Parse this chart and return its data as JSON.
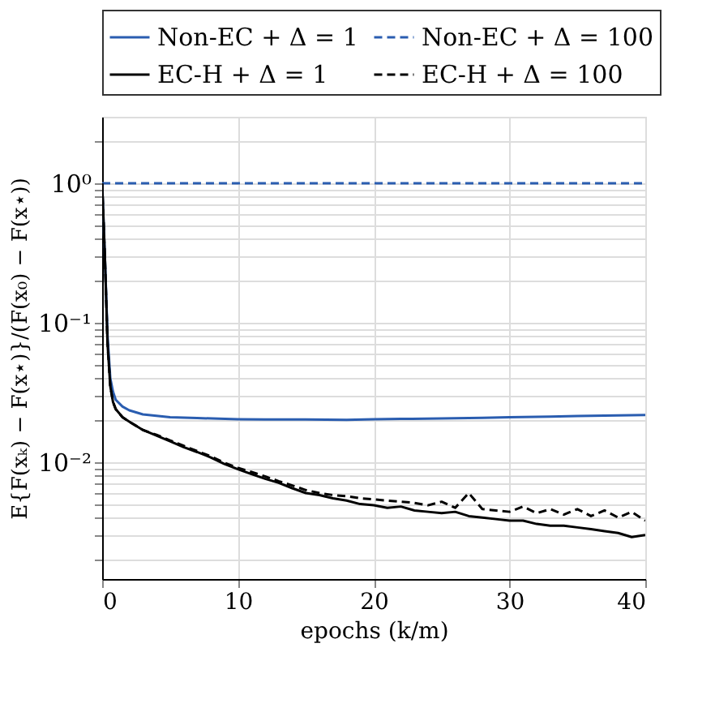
{
  "chart_data": {
    "type": "line",
    "xlabel": "epochs (k/m)",
    "ylabel": "E{F(xₖ) − F(x⋆)}/(F(x₀) − F(x⋆))",
    "log": "y",
    "grid": true,
    "legend": "top",
    "xlim": [
      0,
      40
    ],
    "xticks": [
      0,
      10,
      20,
      30,
      40
    ],
    "ylim": [
      0.00145,
      3
    ],
    "yticks": [
      {
        "value": 0.002,
        "label": null
      },
      {
        "value": 0.003,
        "label": null
      },
      {
        "value": 0.004,
        "label": null
      },
      {
        "value": 0.005,
        "label": null
      },
      {
        "value": 0.006,
        "label": null
      },
      {
        "value": 0.007,
        "label": null
      },
      {
        "value": 0.008,
        "label": null
      },
      {
        "value": 0.009,
        "label": null
      },
      {
        "value": 0.01,
        "label": "10⁻²"
      },
      {
        "value": 0.02,
        "label": null
      },
      {
        "value": 0.03,
        "label": null
      },
      {
        "value": 0.04,
        "label": null
      },
      {
        "value": 0.05,
        "label": null
      },
      {
        "value": 0.06,
        "label": null
      },
      {
        "value": 0.07,
        "label": null
      },
      {
        "value": 0.08,
        "label": null
      },
      {
        "value": 0.09,
        "label": null
      },
      {
        "value": 0.1,
        "label": "10⁻¹"
      },
      {
        "value": 0.2,
        "label": null
      },
      {
        "value": 0.3,
        "label": null
      },
      {
        "value": 0.4,
        "label": null
      },
      {
        "value": 0.5,
        "label": null
      },
      {
        "value": 0.6,
        "label": null
      },
      {
        "value": 0.7,
        "label": null
      },
      {
        "value": 0.8,
        "label": null
      },
      {
        "value": 0.9,
        "label": null
      },
      {
        "value": 1,
        "label": "10⁰"
      },
      {
        "value": 2,
        "label": null
      }
    ],
    "series": [
      {
        "name": "Non-EC + Δ = 1",
        "color": "#2a5db0",
        "line_style": "solid",
        "x": [
          0,
          0.2,
          0.4,
          0.6,
          0.8,
          1,
          1.5,
          2,
          3,
          4,
          5,
          7,
          10,
          12,
          15,
          18,
          20,
          22,
          25,
          28,
          30,
          33,
          35,
          38,
          40
        ],
        "values": [
          1,
          0.3,
          0.08,
          0.04,
          0.032,
          0.028,
          0.025,
          0.0235,
          0.022,
          0.0215,
          0.021,
          0.0207,
          0.0203,
          0.0202,
          0.0202,
          0.0201,
          0.0203,
          0.0204,
          0.0206,
          0.0208,
          0.021,
          0.0212,
          0.0214,
          0.0216,
          0.0218
        ]
      },
      {
        "name": "Non-EC + Δ = 100",
        "color": "#2a5db0",
        "line_style": "dashed",
        "x": [
          0,
          40
        ],
        "values": [
          1,
          1
        ]
      },
      {
        "name": "EC-H + Δ = 1",
        "color": "#000000",
        "line_style": "solid",
        "x": [
          0,
          0.2,
          0.4,
          0.6,
          0.8,
          1,
          1.5,
          2,
          3,
          4,
          5,
          6,
          7,
          8,
          9,
          10,
          11,
          12,
          13,
          14,
          15,
          16,
          17,
          18,
          19,
          20,
          21,
          22,
          23,
          24,
          25,
          26,
          27,
          28,
          29,
          30,
          31,
          32,
          33,
          34,
          35,
          36,
          37,
          38,
          39,
          40
        ],
        "values": [
          1,
          0.3,
          0.07,
          0.035,
          0.027,
          0.024,
          0.021,
          0.0195,
          0.017,
          0.0155,
          0.0141,
          0.0128,
          0.0118,
          0.0108,
          0.0097,
          0.0089,
          0.0082,
          0.0076,
          0.0071,
          0.0065,
          0.006,
          0.0058,
          0.0055,
          0.0053,
          0.005,
          0.0049,
          0.0047,
          0.0048,
          0.0045,
          0.0044,
          0.0043,
          0.0044,
          0.0041,
          0.004,
          0.0039,
          0.0038,
          0.0038,
          0.0036,
          0.0035,
          0.0035,
          0.0034,
          0.0033,
          0.0032,
          0.0031,
          0.0029,
          0.003
        ]
      },
      {
        "name": "EC-H + Δ = 100",
        "color": "#000000",
        "line_style": "dashed",
        "x": [
          0,
          0.2,
          0.4,
          0.6,
          0.8,
          1,
          1.5,
          2,
          3,
          4,
          5,
          6,
          7,
          8,
          9,
          10,
          11,
          12,
          13,
          14,
          15,
          16,
          17,
          18,
          19,
          20,
          21,
          22,
          23,
          24,
          25,
          26,
          27,
          28,
          29,
          30,
          31,
          32,
          33,
          34,
          35,
          36,
          37,
          38,
          39,
          40
        ],
        "values": [
          1,
          0.3,
          0.07,
          0.035,
          0.027,
          0.024,
          0.021,
          0.0195,
          0.017,
          0.0157,
          0.0143,
          0.0131,
          0.012,
          0.011,
          0.0099,
          0.0091,
          0.0085,
          0.0079,
          0.0073,
          0.0068,
          0.0063,
          0.006,
          0.0058,
          0.0057,
          0.0055,
          0.0054,
          0.0053,
          0.0052,
          0.0051,
          0.0049,
          0.0052,
          0.0047,
          0.006,
          0.0046,
          0.0045,
          0.0044,
          0.0048,
          0.0043,
          0.0046,
          0.0042,
          0.0046,
          0.0041,
          0.0045,
          0.004,
          0.0044,
          0.0038
        ]
      }
    ]
  }
}
